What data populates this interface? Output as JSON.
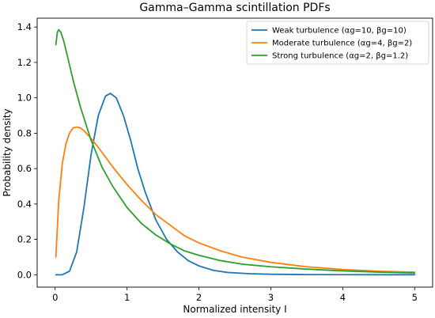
{
  "chart_data": {
    "type": "line",
    "title": "Gamma–Gamma scintillation PDFs",
    "xlabel": "Normalized intensity I",
    "ylabel": "Probability density",
    "xlim": [
      -0.25,
      5.25
    ],
    "ylim": [
      -0.07,
      1.45
    ],
    "xticks": [
      0,
      1,
      2,
      3,
      4,
      5
    ],
    "xtick_labels": [
      "0",
      "1",
      "2",
      "3",
      "4",
      "5"
    ],
    "yticks": [
      0.0,
      0.2,
      0.4,
      0.6,
      0.8,
      1.0,
      1.2,
      1.4
    ],
    "ytick_labels": [
      "0.0",
      "0.2",
      "0.4",
      "0.6",
      "0.8",
      "1.0",
      "1.2",
      "1.4"
    ],
    "grid": false,
    "legend_position": "top-right",
    "series": [
      {
        "name": "Weak turbulence (αg=10, βg=10)",
        "color": "#1f77b4",
        "x": [
          0.01,
          0.1,
          0.2,
          0.3,
          0.4,
          0.5,
          0.6,
          0.7,
          0.77,
          0.85,
          0.95,
          1.05,
          1.15,
          1.25,
          1.4,
          1.55,
          1.7,
          1.85,
          2.0,
          2.2,
          2.4,
          2.7,
          3.0,
          3.5,
          4.0,
          4.5,
          5.0
        ],
        "y": [
          0.0,
          0.0,
          0.02,
          0.13,
          0.38,
          0.68,
          0.9,
          1.01,
          1.025,
          1.0,
          0.9,
          0.76,
          0.6,
          0.47,
          0.31,
          0.2,
          0.13,
          0.08,
          0.05,
          0.025,
          0.013,
          0.006,
          0.003,
          0.001,
          0.0005,
          0.0002,
          0.0001
        ]
      },
      {
        "name": "Moderate turbulence (αg=4, βg=2)",
        "color": "#ff7f0e",
        "x": [
          0.01,
          0.05,
          0.1,
          0.15,
          0.2,
          0.25,
          0.3,
          0.35,
          0.4,
          0.5,
          0.6,
          0.7,
          0.8,
          1.0,
          1.2,
          1.4,
          1.6,
          1.8,
          2.0,
          2.3,
          2.6,
          3.0,
          3.5,
          4.0,
          4.5,
          5.0
        ],
        "y": [
          0.1,
          0.42,
          0.63,
          0.74,
          0.8,
          0.83,
          0.835,
          0.83,
          0.815,
          0.77,
          0.72,
          0.665,
          0.61,
          0.51,
          0.42,
          0.34,
          0.28,
          0.22,
          0.18,
          0.135,
          0.1,
          0.07,
          0.045,
          0.03,
          0.02,
          0.015
        ]
      },
      {
        "name": "Strong turbulence (αg=2, βg=1.2)",
        "color": "#2ca02c",
        "x": [
          0.01,
          0.03,
          0.05,
          0.08,
          0.12,
          0.18,
          0.25,
          0.35,
          0.5,
          0.65,
          0.8,
          1.0,
          1.2,
          1.4,
          1.6,
          1.8,
          2.0,
          2.3,
          2.6,
          3.0,
          3.5,
          4.0,
          4.5,
          5.0
        ],
        "y": [
          1.3,
          1.37,
          1.385,
          1.37,
          1.32,
          1.22,
          1.1,
          0.95,
          0.76,
          0.61,
          0.5,
          0.38,
          0.29,
          0.225,
          0.175,
          0.135,
          0.11,
          0.08,
          0.06,
          0.045,
          0.032,
          0.022,
          0.015,
          0.01
        ]
      }
    ]
  }
}
